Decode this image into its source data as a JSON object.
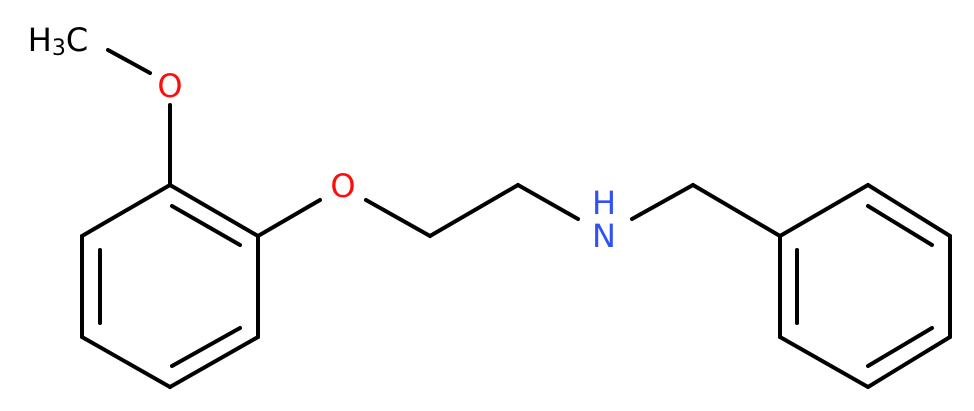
{
  "atoms": {
    "methyl": {
      "h": "H",
      "sub": "3",
      "c": "C"
    },
    "methoxy_oxygen": "O",
    "ether_oxygen": "O",
    "amine_nitrogen": "N",
    "amine_hydrogen": "H"
  }
}
